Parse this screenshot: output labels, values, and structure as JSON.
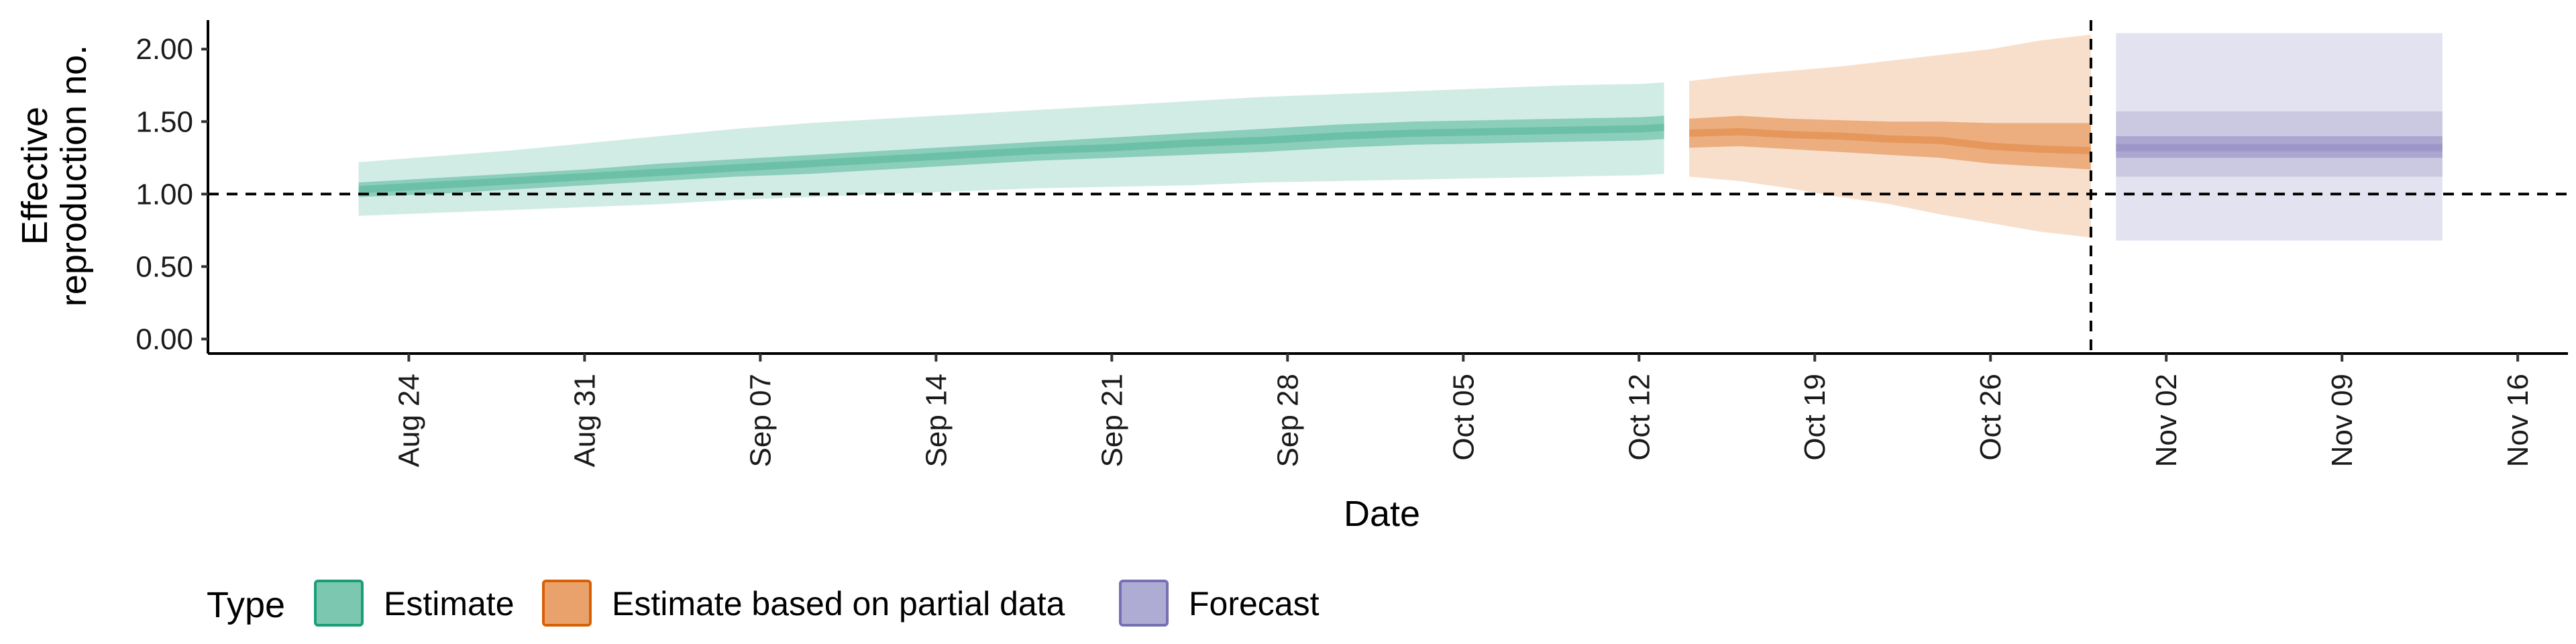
{
  "chart_data": {
    "type": "area",
    "title": "",
    "xlabel": "Date",
    "ylabel_lines": [
      "Effective",
      "reproduction no."
    ],
    "y_ticks": [
      0,
      0.5,
      1,
      1.5,
      2
    ],
    "y_tick_labels": [
      "0.00",
      "0.50",
      "1.00",
      "1.50",
      "2.00"
    ],
    "ylim": [
      -0.1,
      2.2
    ],
    "x_ticks": [
      "2020-08-24",
      "2020-08-31",
      "2020-09-07",
      "2020-09-14",
      "2020-09-21",
      "2020-09-28",
      "2020-10-05",
      "2020-10-12",
      "2020-10-19",
      "2020-10-26",
      "2020-11-02",
      "2020-11-09",
      "2020-11-16"
    ],
    "x_tick_labels": [
      "Aug 24",
      "Aug 31",
      "Sep 07",
      "Sep 14",
      "Sep 21",
      "Sep 28",
      "Oct 05",
      "Oct 12",
      "Oct 19",
      "Oct 26",
      "Nov 02",
      "Nov 09",
      "Nov 16"
    ],
    "xlim": [
      "2020-08-16",
      "2020-11-18"
    ],
    "reference_hline": 1.0,
    "forecast_vline": "2020-10-30",
    "grid": false,
    "legend": {
      "position": "bottom",
      "title": "Type",
      "entries": [
        {
          "label": "Estimate",
          "fill": "#1b9e77",
          "border": "#1b9e77"
        },
        {
          "label": "Estimate based on partial data",
          "fill": "#d95f02",
          "border": "#d95f02"
        },
        {
          "label": "Forecast",
          "fill": "#7570b3",
          "border": "#7570b3"
        }
      ]
    },
    "series": [
      {
        "name": "Estimate",
        "color": "#1b9e77",
        "x": [
          "2020-08-22",
          "2020-08-25",
          "2020-08-28",
          "2020-08-31",
          "2020-09-03",
          "2020-09-06",
          "2020-09-09",
          "2020-09-12",
          "2020-09-15",
          "2020-09-18",
          "2020-09-21",
          "2020-09-24",
          "2020-09-27",
          "2020-09-30",
          "2020-10-03",
          "2020-10-06",
          "2020-10-09",
          "2020-10-12",
          "2020-10-13"
        ],
        "median": [
          1.03,
          1.06,
          1.09,
          1.12,
          1.15,
          1.18,
          1.21,
          1.24,
          1.27,
          1.3,
          1.32,
          1.35,
          1.37,
          1.4,
          1.42,
          1.43,
          1.44,
          1.45,
          1.46
        ],
        "ci20": [
          [
            0.98,
            1.08
          ],
          [
            1.0,
            1.11
          ],
          [
            1.03,
            1.14
          ],
          [
            1.06,
            1.17
          ],
          [
            1.09,
            1.21
          ],
          [
            1.12,
            1.24
          ],
          [
            1.14,
            1.27
          ],
          [
            1.17,
            1.3
          ],
          [
            1.2,
            1.33
          ],
          [
            1.23,
            1.36
          ],
          [
            1.25,
            1.39
          ],
          [
            1.27,
            1.42
          ],
          [
            1.29,
            1.45
          ],
          [
            1.32,
            1.48
          ],
          [
            1.34,
            1.5
          ],
          [
            1.35,
            1.51
          ],
          [
            1.36,
            1.52
          ],
          [
            1.37,
            1.53
          ],
          [
            1.38,
            1.54
          ]
        ],
        "ci90": [
          [
            0.85,
            1.22
          ],
          [
            0.87,
            1.26
          ],
          [
            0.89,
            1.3
          ],
          [
            0.91,
            1.35
          ],
          [
            0.93,
            1.4
          ],
          [
            0.96,
            1.45
          ],
          [
            0.98,
            1.49
          ],
          [
            1.0,
            1.52
          ],
          [
            1.02,
            1.55
          ],
          [
            1.04,
            1.58
          ],
          [
            1.05,
            1.61
          ],
          [
            1.06,
            1.64
          ],
          [
            1.08,
            1.67
          ],
          [
            1.09,
            1.69
          ],
          [
            1.1,
            1.71
          ],
          [
            1.11,
            1.73
          ],
          [
            1.12,
            1.75
          ],
          [
            1.13,
            1.76
          ],
          [
            1.14,
            1.77
          ]
        ]
      },
      {
        "name": "Estimate based on partial data",
        "color": "#d95f02",
        "x": [
          "2020-10-14",
          "2020-10-16",
          "2020-10-18",
          "2020-10-20",
          "2020-10-22",
          "2020-10-24",
          "2020-10-26",
          "2020-10-28",
          "2020-10-30"
        ],
        "median": [
          1.42,
          1.43,
          1.41,
          1.4,
          1.38,
          1.37,
          1.33,
          1.31,
          1.3
        ],
        "ci20": [
          [
            1.32,
            1.52
          ],
          [
            1.33,
            1.54
          ],
          [
            1.31,
            1.52
          ],
          [
            1.29,
            1.51
          ],
          [
            1.27,
            1.5
          ],
          [
            1.25,
            1.5
          ],
          [
            1.21,
            1.49
          ],
          [
            1.19,
            1.49
          ],
          [
            1.17,
            1.49
          ]
        ],
        "ci90": [
          [
            1.12,
            1.78
          ],
          [
            1.09,
            1.82
          ],
          [
            1.04,
            1.85
          ],
          [
            0.98,
            1.88
          ],
          [
            0.93,
            1.92
          ],
          [
            0.86,
            1.96
          ],
          [
            0.8,
            2.0
          ],
          [
            0.74,
            2.06
          ],
          [
            0.7,
            2.1
          ]
        ]
      },
      {
        "name": "Forecast",
        "color": "#7570b3",
        "x": [
          "2020-10-31",
          "2020-11-13"
        ],
        "median": [
          1.32,
          1.32
        ],
        "ci20": [
          [
            1.25,
            1.4
          ],
          [
            1.25,
            1.4
          ]
        ],
        "ci50": [
          [
            1.12,
            1.57
          ],
          [
            1.12,
            1.57
          ]
        ],
        "ci90": [
          [
            0.68,
            2.11
          ],
          [
            0.68,
            2.11
          ]
        ]
      }
    ]
  }
}
